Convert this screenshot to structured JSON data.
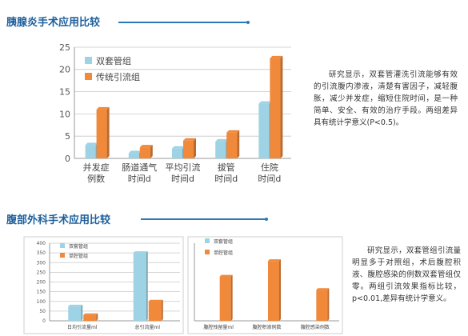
{
  "section1": {
    "title": "胰腺炎手术应用比较",
    "description": "研究显示，双套管灌洗引流能够有效的引流腹内渗液，清楚有害因子，减轻腹胀，减少并发症，缩短住院时间，是一种简单、安全、有效的治疗手段。两组差异具有统计学意义(P<0.5)。"
  },
  "section2": {
    "title": "腹部外科手术应用比较",
    "description": "研究显示，双套管组引流量明显多于对照组，术后腹腔积液、腹腔感染的例数双套管组仅零。两组引流效果指标比较，p<0.01,差异有统计学意义。"
  },
  "colors": {
    "series1": "#9ed3e6",
    "series2": "#f0893a",
    "title": "#1d5f9c"
  },
  "chart_data": [
    {
      "type": "bar",
      "categories": [
        [
          "并发症",
          "例数"
        ],
        [
          "肠道通气",
          "时间d"
        ],
        [
          "平均引流",
          "时间d"
        ],
        [
          "拔管",
          "时间d"
        ],
        [
          "住院",
          "时间d"
        ]
      ],
      "series": [
        {
          "name": "双套管组",
          "values": [
            3,
            1.2,
            2.2,
            3.8,
            12.3
          ]
        },
        {
          "name": "传统引流组",
          "values": [
            11,
            2.5,
            4,
            5.8,
            22.5
          ]
        }
      ],
      "ylim": [
        0,
        25
      ],
      "yticks": [
        0,
        5,
        10,
        15,
        20,
        25
      ],
      "grid": true,
      "legend": "top-left"
    },
    {
      "type": "bar",
      "categories": [
        [
          "日均引流量ml"
        ],
        [
          "总引流量ml"
        ]
      ],
      "series": [
        {
          "name": "双套管组",
          "values": [
            75,
            350
          ]
        },
        {
          "name": "单腔管组",
          "values": [
            30,
            100
          ]
        }
      ],
      "ylim": [
        0,
        400
      ],
      "yticks": [
        0,
        50,
        100,
        150,
        200,
        250,
        300,
        350,
        400
      ],
      "grid": true,
      "legend": "top-left"
    },
    {
      "type": "bar",
      "categories": [
        [
          "腹腔残留量ml"
        ],
        [
          "腹腔积液例数"
        ],
        [
          "腹腔感染例数"
        ]
      ],
      "series": [
        {
          "name": "双套管组",
          "values": [
            0,
            0,
            0
          ]
        },
        {
          "name": "单腔管组",
          "values": [
            2,
            2.7,
            1.4
          ]
        }
      ],
      "ylim": [
        0,
        3.5
      ],
      "yticks": [],
      "grid": false,
      "legend": "top-left"
    }
  ]
}
